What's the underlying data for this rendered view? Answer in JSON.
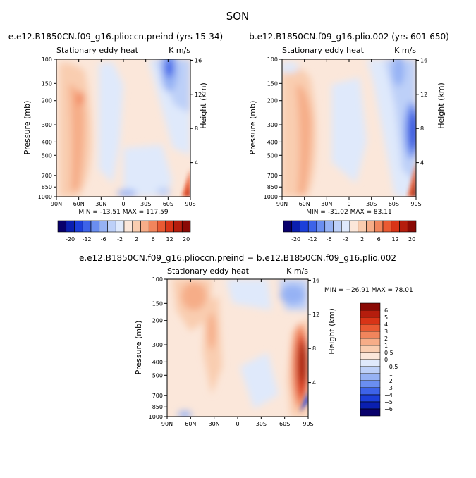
{
  "page_title": "SON",
  "colors": {
    "scale": [
      "#08006b",
      "#0a1fb0",
      "#1c3fd9",
      "#3d63e8",
      "#6a8ef0",
      "#96b2f4",
      "#bdd0f8",
      "#dfe9fb",
      "#fbe7da",
      "#f9cdb0",
      "#f6ad88",
      "#f1855c",
      "#e95a33",
      "#d83417",
      "#b51d0d",
      "#8a0a05"
    ]
  },
  "chart_data": [
    {
      "type": "heatmap",
      "id": "panel-a",
      "title": "e.e12.B1850CN.f09_g16.plioccn.preind (yrs 15-34)",
      "left_label": "Stationary eddy heat",
      "right_label": "K m/s",
      "ylabel": "Pressure (mb)",
      "ylabel_right": "Height (km)",
      "x_ticks": [
        "90N",
        "60N",
        "30N",
        "0",
        "30S",
        "60S",
        "90S"
      ],
      "y_ticks": [
        "100",
        "150",
        "200",
        "300",
        "400",
        "500",
        "700",
        "850",
        "1000"
      ],
      "height_ticks": [
        "16",
        "12",
        "8",
        "4"
      ],
      "stats": "MIN = -13.51   MAX = 117.59",
      "colorbar": {
        "orientation": "horizontal",
        "labels": [
          "-20",
          "-12",
          "-6",
          "-2",
          "2",
          "6",
          "12",
          "20"
        ]
      },
      "features": [
        {
          "lat": 62,
          "p": 220,
          "value": 8,
          "desc": "positive lobe NH midlatitudes"
        },
        {
          "lat": -75,
          "p": 120,
          "value": -12,
          "desc": "negative lobe SH high latitudes upper"
        },
        {
          "lat": -85,
          "p": 900,
          "value": 20,
          "desc": "strong positive near SH surface"
        }
      ]
    },
    {
      "type": "heatmap",
      "id": "panel-b",
      "title": "b.e12.B1850CN.f09_g16.plio.002 (yrs 601-650)",
      "left_label": "Stationary eddy heat",
      "right_label": "K m/s",
      "ylabel": "Pressure (mb)",
      "ylabel_right": "Height (km)",
      "x_ticks": [
        "90N",
        "60N",
        "30N",
        "0",
        "30S",
        "60S",
        "90S"
      ],
      "y_ticks": [
        "100",
        "150",
        "200",
        "300",
        "400",
        "500",
        "700",
        "850",
        "1000"
      ],
      "height_ticks": [
        "16",
        "12",
        "8",
        "4"
      ],
      "stats": "MIN = -31.02   MAX = 83.11",
      "colorbar": {
        "orientation": "horizontal",
        "labels": [
          "-20",
          "-12",
          "-6",
          "-2",
          "2",
          "6",
          "12",
          "20"
        ]
      },
      "features": [
        {
          "lat": 60,
          "p": 250,
          "value": 6
        },
        {
          "lat": -80,
          "p": 350,
          "value": -20
        },
        {
          "lat": -85,
          "p": 900,
          "value": 20
        }
      ]
    },
    {
      "type": "heatmap",
      "id": "panel-diff",
      "title": "e.e12.B1850CN.f09_g16.plioccn.preind − b.e12.B1850CN.f09_g16.plio.002",
      "left_label": "Stationary eddy heat",
      "right_label": "K m/s",
      "ylabel": "Pressure (mb)",
      "ylabel_right": "Height (km)",
      "x_ticks": [
        "90N",
        "60N",
        "30N",
        "0",
        "30S",
        "60S",
        "90S"
      ],
      "y_ticks": [
        "100",
        "150",
        "200",
        "300",
        "400",
        "500",
        "700",
        "850",
        "1000"
      ],
      "height_ticks": [
        "16",
        "12",
        "8",
        "4"
      ],
      "stats": "MIN = −26.91   MAX =  78.01",
      "colorbar": {
        "orientation": "vertical",
        "labels": [
          "6",
          "5",
          "4",
          "3",
          "2",
          "1",
          "0.5",
          "0",
          "−0.5",
          "−1",
          "−2",
          "−3",
          "−4",
          "−5",
          "−6"
        ]
      },
      "features": [
        {
          "lat": 65,
          "p": 130,
          "value": 2
        },
        {
          "lat": 30,
          "p": 250,
          "value": 2
        },
        {
          "lat": -70,
          "p": 130,
          "value": -3
        },
        {
          "lat": -85,
          "p": 400,
          "value": 6
        }
      ]
    }
  ]
}
